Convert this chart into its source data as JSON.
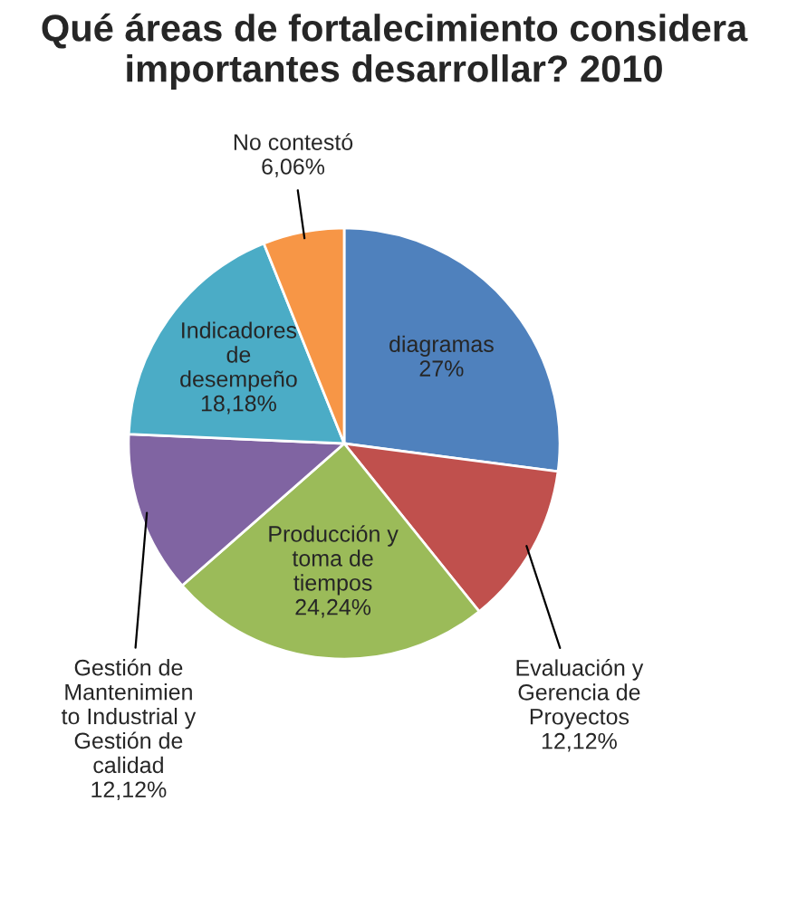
{
  "chart_data": {
    "type": "pie",
    "title": "Qué áreas de fortalecimiento considera importantes desarrollar? 2010",
    "categories": [
      "diagramas",
      "Evaluación y\nGerencia de\nProyectos",
      "Producción y\ntoma de\ntiempos",
      "Gestión de\nMantenimien\nto Industrial y\nGestión de\ncalidad",
      "Indicadores\nde\ndesempeño",
      "No contestó"
    ],
    "values": [
      27,
      12.12,
      24.24,
      12.12,
      18.18,
      6.06
    ],
    "value_labels": [
      "27%",
      "12,12%",
      "24,24%",
      "12,12%",
      "18,18%",
      "6,06%"
    ],
    "colors": [
      "#4f81bd",
      "#c0504d",
      "#9bbb59",
      "#8064a2",
      "#4bacc6",
      "#f79646"
    ],
    "legend": false
  }
}
